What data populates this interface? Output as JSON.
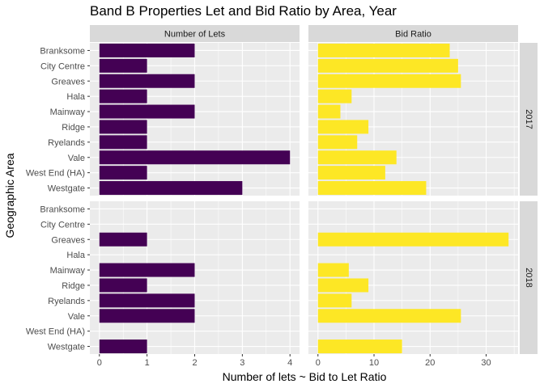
{
  "chart_data": {
    "type": "bar",
    "orientation": "horizontal",
    "title": "Band B Properties Let and Bid Ratio by Area, Year",
    "xlabel": "Number of lets ~ Bid to Let Ratio",
    "ylabel": "Geographic Area",
    "categories": [
      "Branksome",
      "City Centre",
      "Greaves",
      "Hala",
      "Mainway",
      "Ridge",
      "Ryelands",
      "Vale",
      "West End (HA)",
      "Westgate"
    ],
    "columns": [
      {
        "label": "Number of Lets",
        "color": "#440154",
        "xlim": [
          -0.2,
          4.2
        ],
        "ticks": [
          0,
          1,
          2,
          3,
          4
        ]
      },
      {
        "label": "Bid Ratio",
        "color": "#fde725",
        "xlim": [
          -1.7,
          35.7
        ],
        "ticks": [
          0,
          10,
          20,
          30
        ]
      }
    ],
    "rows": [
      {
        "label": "2017",
        "series": [
          {
            "column": "Number of Lets",
            "values": [
              2,
              1,
              2,
              1,
              2,
              1,
              1,
              4,
              1,
              3
            ]
          },
          {
            "column": "Bid Ratio",
            "values": [
              23.5,
              25,
              25.5,
              6,
              4,
              9,
              7,
              14,
              12,
              19.3
            ]
          }
        ]
      },
      {
        "label": "2018",
        "series": [
          {
            "column": "Number of Lets",
            "values": [
              null,
              null,
              1,
              null,
              2,
              1,
              2,
              2,
              null,
              1
            ]
          },
          {
            "column": "Bid Ratio",
            "values": [
              null,
              null,
              34,
              null,
              5.5,
              9,
              6,
              25.5,
              null,
              15
            ]
          }
        ]
      }
    ],
    "grid": true,
    "legend": "none"
  }
}
